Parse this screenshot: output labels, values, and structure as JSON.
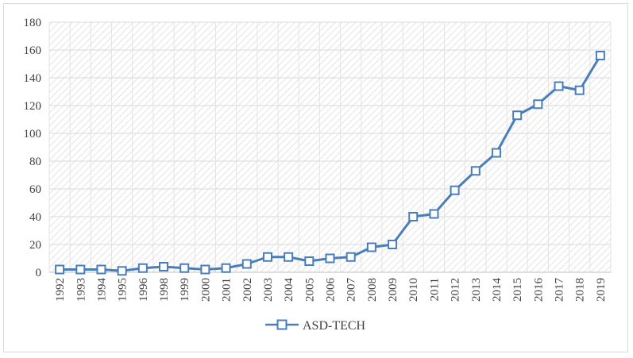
{
  "chart_data": {
    "type": "line",
    "title": "",
    "xlabel": "",
    "ylabel": "",
    "ylim": [
      0,
      180
    ],
    "yticks": [
      0,
      20,
      40,
      60,
      80,
      100,
      120,
      140,
      160,
      180
    ],
    "grid": true,
    "legend_position": "bottom",
    "categories": [
      "1992",
      "1993",
      "1994",
      "1995",
      "1996",
      "1998",
      "1999",
      "2000",
      "2001",
      "2002",
      "2003",
      "2004",
      "2005",
      "2006",
      "2007",
      "2008",
      "2009",
      "2010",
      "2011",
      "2012",
      "2013",
      "2014",
      "2015",
      "2016",
      "2017",
      "2018",
      "2019"
    ],
    "series": [
      {
        "name": "ASD-TECH",
        "color": "#4a7ebb",
        "marker": "square",
        "values": [
          2,
          2,
          2,
          1,
          3,
          4,
          3,
          2,
          3,
          6,
          11,
          11,
          8,
          10,
          11,
          18,
          20,
          40,
          42,
          59,
          73,
          86,
          113,
          121,
          134,
          131,
          156
        ]
      }
    ]
  }
}
